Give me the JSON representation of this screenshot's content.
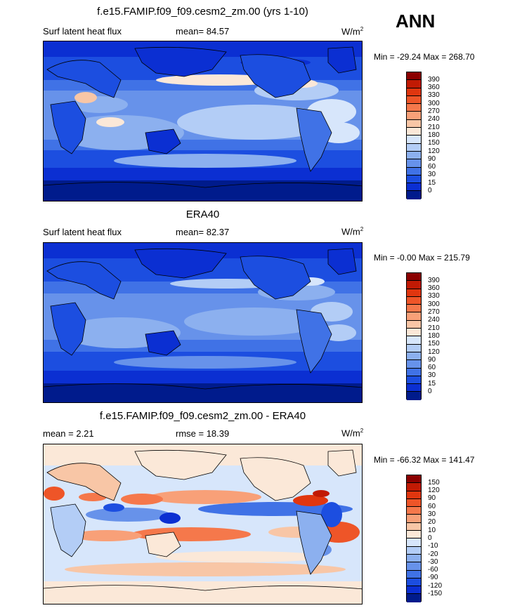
{
  "season": "ANN",
  "panels": [
    {
      "title": "f.e15.FAMIP.f09_f09.cesm2_zm.00 (yrs 1-10)",
      "left_label": "Surf latent heat flux",
      "center_label": "mean=  84.57",
      "units": "W/m",
      "units_sup": "2",
      "minmax": "Min = -29.24 Max = 268.70",
      "palette": "model",
      "legend_labels": [
        "390",
        "360",
        "330",
        "300",
        "270",
        "240",
        "210",
        "180",
        "150",
        "120",
        "90",
        "60",
        "30",
        "15",
        "0"
      ]
    },
    {
      "title": "ERA40",
      "left_label": "Surf latent heat flux",
      "center_label": "mean=  82.37",
      "units": "W/m",
      "units_sup": "2",
      "minmax": "Min =  -0.00 Max = 215.79",
      "palette": "obs",
      "legend_labels": [
        "390",
        "360",
        "330",
        "300",
        "270",
        "240",
        "210",
        "180",
        "150",
        "120",
        "90",
        "60",
        "30",
        "15",
        "0"
      ]
    },
    {
      "title": "f.e15.FAMIP.f09_f09.cesm2_zm.00 - ERA40",
      "left_label": "mean =   2.21",
      "center_label": "rmse =  18.39",
      "units": "W/m",
      "units_sup": "2",
      "minmax": "Min = -66.32 Max = 141.47",
      "palette": "diff",
      "legend_labels": [
        "150",
        "120",
        "90",
        "60",
        "30",
        "20",
        "10",
        "0",
        "-10",
        "-20",
        "-30",
        "-60",
        "-90",
        "-120",
        "-150"
      ]
    }
  ],
  "colors": {
    "abs_scale": [
      "#8b0000",
      "#c11a04",
      "#e0360f",
      "#ee5528",
      "#f5784b",
      "#f8a078",
      "#f8c6a6",
      "#fbe8d8",
      "#d7e6fb",
      "#b3cdf6",
      "#8cb0ef",
      "#6792ea",
      "#4072e6",
      "#1c4ee0",
      "#0b2fd2",
      "#001b8c"
    ],
    "diff_scale": [
      "#8b0000",
      "#c11a04",
      "#e0360f",
      "#ee5528",
      "#f5784b",
      "#f8a078",
      "#f8c6a6",
      "#fbe8d8",
      "#d7e6fb",
      "#b3cdf6",
      "#8cb0ef",
      "#6792ea",
      "#4072e6",
      "#1c4ee0",
      "#0b2fd2",
      "#001b8c"
    ]
  }
}
